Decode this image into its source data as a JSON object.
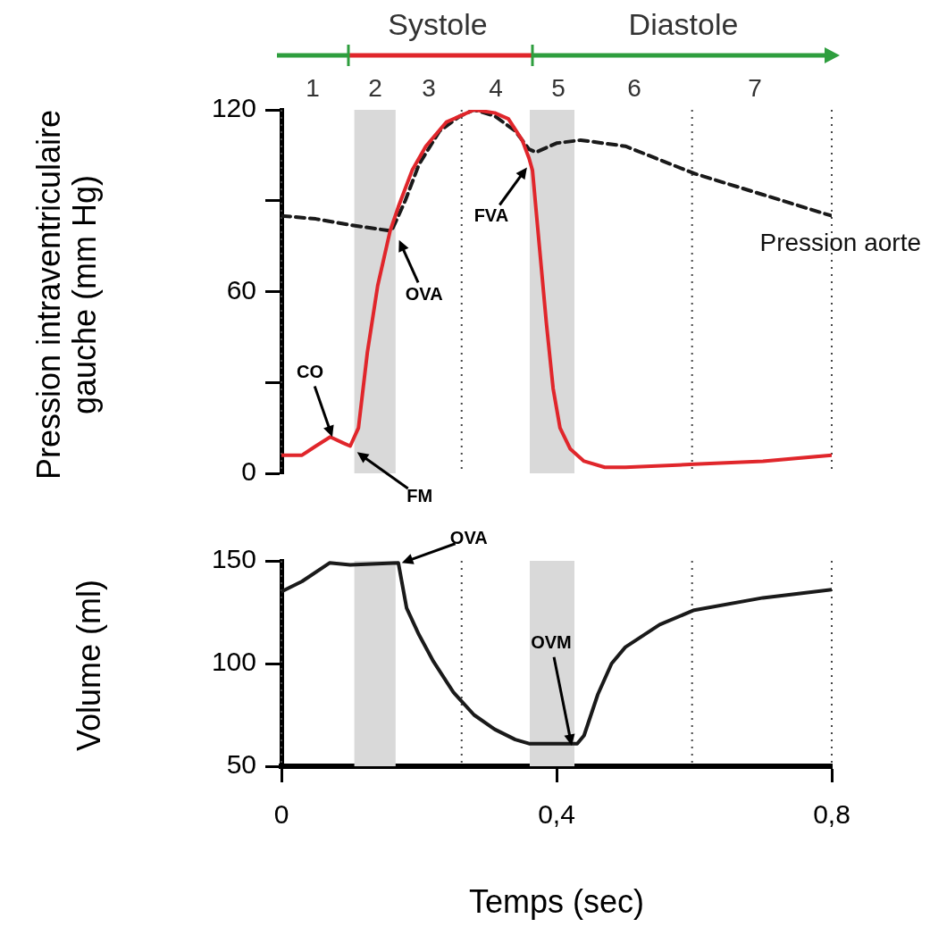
{
  "chart_data": [
    {
      "type": "line",
      "ylabel": "Pression intraventriculaire gauche (mm Hg)",
      "xlim": [
        0,
        0.8
      ],
      "ylim": [
        0,
        120
      ],
      "yticks": [
        0,
        {
          "value": 30,
          "label": null
        },
        60,
        {
          "value": 90,
          "label": null
        },
        120
      ],
      "tick_labels": "y",
      "grid": false,
      "legend": false,
      "marker": "none",
      "series": [
        {
          "color": "#e0262b",
          "line_style": "solid",
          "x": [
            0,
            0.03,
            0.05,
            0.071,
            0.09,
            0.1,
            0.112,
            0.125,
            0.14,
            0.158,
            0.17,
            0.19,
            0.21,
            0.24,
            0.28,
            0.31,
            0.33,
            0.35,
            0.36,
            0.365,
            0.375,
            0.385,
            0.395,
            0.405,
            0.42,
            0.44,
            0.47,
            0.5,
            0.6,
            0.7,
            0.8
          ],
          "values": [
            6,
            6,
            9,
            12,
            10,
            9,
            15,
            40,
            62,
            80,
            88,
            100,
            108,
            116,
            120,
            119,
            117,
            110,
            104,
            100,
            75,
            50,
            28,
            15,
            8,
            4,
            2,
            2,
            3,
            4,
            6
          ]
        },
        {
          "name": "Pression aorte",
          "color": "#1a1a1a",
          "line_style": "dashed",
          "x": [
            0,
            0.05,
            0.1,
            0.16,
            0.18,
            0.2,
            0.23,
            0.26,
            0.28,
            0.31,
            0.34,
            0.36,
            0.37,
            0.4,
            0.435,
            0.5,
            0.6,
            0.7,
            0.8
          ],
          "values": [
            85,
            84,
            82,
            80,
            90,
            102,
            113,
            118,
            120,
            118,
            113,
            107,
            106,
            109,
            110,
            108,
            99,
            92,
            85
          ]
        }
      ],
      "bands": [
        {
          "axis": "x",
          "from": 0.106,
          "to": 0.166,
          "color": "#d9d9d9"
        },
        {
          "axis": "x",
          "from": 0.361,
          "to": 0.426,
          "color": "#d9d9d9"
        }
      ],
      "ref_lines": [
        {
          "axis": "x",
          "value": 0,
          "line_style": "dotted"
        },
        {
          "axis": "x",
          "value": 0.262,
          "line_style": "dotted"
        },
        {
          "axis": "x",
          "value": 0.597,
          "line_style": "dotted"
        },
        {
          "axis": "x",
          "value": 0.8,
          "line_style": "dotted"
        }
      ],
      "annotations": [
        "Systole",
        "Diastole",
        "1",
        "2",
        "3",
        "4",
        "5",
        "6",
        "7",
        {
          "text": "CO",
          "x": 0.074,
          "y": 12
        },
        {
          "text": "FM",
          "x": 0.11,
          "y": 7
        },
        {
          "text": "OVA",
          "x": 0.171,
          "y": 77
        },
        {
          "text": "FVA",
          "x": 0.357,
          "y": 101
        }
      ]
    },
    {
      "type": "line",
      "xlabel": "Temps (sec)",
      "ylabel": "Volume (ml)",
      "xlim": [
        0,
        0.8
      ],
      "xticks": [
        0,
        {
          "value": 0.4,
          "label": "0,4"
        },
        {
          "value": 0.8,
          "label": "0,8"
        }
      ],
      "ylim": [
        50,
        150
      ],
      "yticks": [
        50,
        100,
        150
      ],
      "grid": false,
      "legend": false,
      "marker": "none",
      "series": [
        {
          "color": "#1a1a1a",
          "line_style": "solid",
          "x": [
            0,
            0.03,
            0.07,
            0.1,
            0.17,
            0.182,
            0.2,
            0.221,
            0.25,
            0.28,
            0.31,
            0.34,
            0.36,
            0.43,
            0.44,
            0.46,
            0.48,
            0.5,
            0.55,
            0.6,
            0.7,
            0.8
          ],
          "values": [
            135,
            140,
            149,
            148,
            149,
            127,
            114,
            101,
            86,
            75,
            68,
            63,
            61,
            61,
            65,
            85,
            100,
            108,
            119,
            126,
            132,
            136
          ]
        }
      ],
      "bands": [
        {
          "axis": "x",
          "from": 0.106,
          "to": 0.166,
          "color": "#d9d9d9"
        },
        {
          "axis": "x",
          "from": 0.361,
          "to": 0.426,
          "color": "#d9d9d9"
        }
      ],
      "ref_lines": [
        {
          "axis": "x",
          "value": 0,
          "line_style": "dotted"
        },
        {
          "axis": "x",
          "value": 0.262,
          "line_style": "dotted"
        },
        {
          "axis": "x",
          "value": 0.597,
          "line_style": "dotted"
        },
        {
          "axis": "x",
          "value": 0.8,
          "line_style": "dotted"
        }
      ],
      "annotations": [
        {
          "text": "OVA",
          "x": 0.175,
          "y": 149
        },
        {
          "text": "OVM",
          "x": 0.422,
          "y": 60
        }
      ]
    }
  ]
}
